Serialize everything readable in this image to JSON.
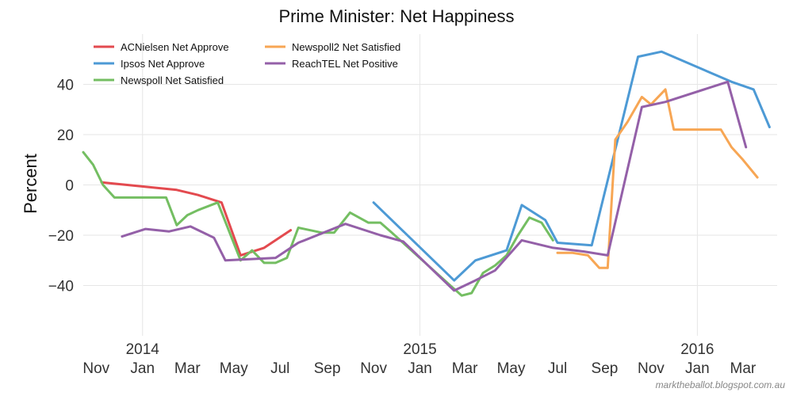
{
  "chart_data": {
    "type": "line",
    "title": "Prime Minister: Net Happiness",
    "xlabel": "",
    "ylabel": "Percent",
    "ylim": [
      -60,
      60
    ],
    "yticks": [
      -40,
      -20,
      0,
      20,
      40
    ],
    "ytick_labels": [
      "−40",
      "−20",
      "0",
      "20",
      "40"
    ],
    "x_range": [
      "2013-10-15",
      "2016-04-15"
    ],
    "month_ticks": [
      {
        "date": "2013-11-01",
        "label": "Nov"
      },
      {
        "date": "2014-01-01",
        "label": "Jan"
      },
      {
        "date": "2014-03-01",
        "label": "Mar"
      },
      {
        "date": "2014-05-01",
        "label": "May"
      },
      {
        "date": "2014-07-01",
        "label": "Jul"
      },
      {
        "date": "2014-09-01",
        "label": "Sep"
      },
      {
        "date": "2014-11-01",
        "label": "Nov"
      },
      {
        "date": "2015-01-01",
        "label": "Jan"
      },
      {
        "date": "2015-03-01",
        "label": "Mar"
      },
      {
        "date": "2015-05-01",
        "label": "May"
      },
      {
        "date": "2015-07-01",
        "label": "Jul"
      },
      {
        "date": "2015-09-01",
        "label": "Sep"
      },
      {
        "date": "2015-11-01",
        "label": "Nov"
      },
      {
        "date": "2016-01-01",
        "label": "Jan"
      },
      {
        "date": "2016-03-01",
        "label": "Mar"
      }
    ],
    "year_ticks": [
      {
        "date": "2014-01-01",
        "label": "2014"
      },
      {
        "date": "2015-01-01",
        "label": "2015"
      },
      {
        "date": "2016-01-01",
        "label": "2016"
      }
    ],
    "grid": true,
    "legend_position": "top-left",
    "series": [
      {
        "name": "ACNielsen Net Approve",
        "color": "#e34a4f",
        "points": [
          [
            "2013-11-08",
            1
          ],
          [
            "2014-02-15",
            -2
          ],
          [
            "2014-03-15",
            -4
          ],
          [
            "2014-04-15",
            -7
          ],
          [
            "2014-05-10",
            -28
          ],
          [
            "2014-06-10",
            -25
          ],
          [
            "2014-07-15",
            -18
          ]
        ]
      },
      {
        "name": "Ipsos Net Approve",
        "color": "#4d9ad5",
        "points": [
          [
            "2014-11-01",
            -7
          ],
          [
            "2015-02-15",
            -38
          ],
          [
            "2015-03-15",
            -30
          ],
          [
            "2015-04-25",
            -26
          ],
          [
            "2015-05-15",
            -8
          ],
          [
            "2015-06-15",
            -14
          ],
          [
            "2015-07-01",
            -23
          ],
          [
            "2015-08-15",
            -24
          ],
          [
            "2015-10-15",
            51
          ],
          [
            "2015-11-15",
            53
          ],
          [
            "2016-02-15",
            41
          ],
          [
            "2016-03-15",
            38
          ],
          [
            "2016-04-05",
            23
          ]
        ]
      },
      {
        "name": "Newspoll Net Satisfied",
        "color": "#74be62",
        "points": [
          [
            "2013-10-15",
            13
          ],
          [
            "2013-10-28",
            8
          ],
          [
            "2013-11-10",
            0
          ],
          [
            "2013-11-25",
            -5
          ],
          [
            "2014-02-01",
            -5
          ],
          [
            "2014-02-15",
            -16
          ],
          [
            "2014-03-01",
            -12
          ],
          [
            "2014-03-15",
            -10
          ],
          [
            "2014-04-10",
            -7
          ],
          [
            "2014-05-10",
            -30
          ],
          [
            "2014-05-25",
            -26
          ],
          [
            "2014-06-10",
            -31
          ],
          [
            "2014-06-25",
            -31
          ],
          [
            "2014-07-10",
            -29
          ],
          [
            "2014-07-25",
            -17
          ],
          [
            "2014-08-25",
            -19
          ],
          [
            "2014-09-10",
            -19
          ],
          [
            "2014-10-01",
            -11
          ],
          [
            "2014-10-25",
            -15
          ],
          [
            "2014-11-10",
            -15
          ],
          [
            "2014-11-25",
            -19
          ],
          [
            "2015-02-10",
            -40
          ],
          [
            "2015-02-25",
            -44
          ],
          [
            "2015-03-10",
            -43
          ],
          [
            "2015-03-25",
            -35
          ],
          [
            "2015-04-10",
            -32
          ],
          [
            "2015-04-25",
            -28
          ],
          [
            "2015-05-10",
            -20
          ],
          [
            "2015-05-25",
            -13
          ],
          [
            "2015-06-10",
            -15
          ],
          [
            "2015-06-25",
            -22
          ]
        ]
      },
      {
        "name": "Newspoll2 Net Satisfied",
        "color": "#f7a654",
        "points": [
          [
            "2015-07-01",
            -27
          ],
          [
            "2015-07-20",
            -27
          ],
          [
            "2015-08-10",
            -28
          ],
          [
            "2015-08-25",
            -33
          ],
          [
            "2015-09-05",
            -33
          ],
          [
            "2015-09-15",
            18
          ],
          [
            "2015-10-01",
            25
          ],
          [
            "2015-10-20",
            35
          ],
          [
            "2015-11-01",
            32
          ],
          [
            "2015-11-20",
            38
          ],
          [
            "2015-12-01",
            22
          ],
          [
            "2015-12-20",
            22
          ],
          [
            "2016-01-15",
            22
          ],
          [
            "2016-02-01",
            22
          ],
          [
            "2016-02-15",
            15
          ],
          [
            "2016-03-01",
            10
          ],
          [
            "2016-03-20",
            3
          ]
        ]
      },
      {
        "name": "ReachTEL Net Positive",
        "color": "#9460a8",
        "points": [
          [
            "2013-12-05",
            -20.5
          ],
          [
            "2014-01-05",
            -17.5
          ],
          [
            "2014-02-05",
            -18.5
          ],
          [
            "2014-03-05",
            -16.5
          ],
          [
            "2014-04-05",
            -21
          ],
          [
            "2014-04-20",
            -30
          ],
          [
            "2014-06-25",
            -29
          ],
          [
            "2014-07-25",
            -23
          ],
          [
            "2014-09-25",
            -15.5
          ],
          [
            "2014-11-10",
            -20
          ],
          [
            "2014-12-10",
            -22.5
          ],
          [
            "2015-02-15",
            -42
          ],
          [
            "2015-03-15",
            -38
          ],
          [
            "2015-04-10",
            -34
          ],
          [
            "2015-05-15",
            -22
          ],
          [
            "2015-06-25",
            -25
          ],
          [
            "2015-08-05",
            -26.5
          ],
          [
            "2015-09-05",
            -28
          ],
          [
            "2015-10-20",
            31
          ],
          [
            "2015-11-20",
            33
          ],
          [
            "2016-02-10",
            41
          ],
          [
            "2016-03-05",
            15
          ]
        ]
      }
    ]
  },
  "credit": "marktheballot.blogspot.com.au"
}
